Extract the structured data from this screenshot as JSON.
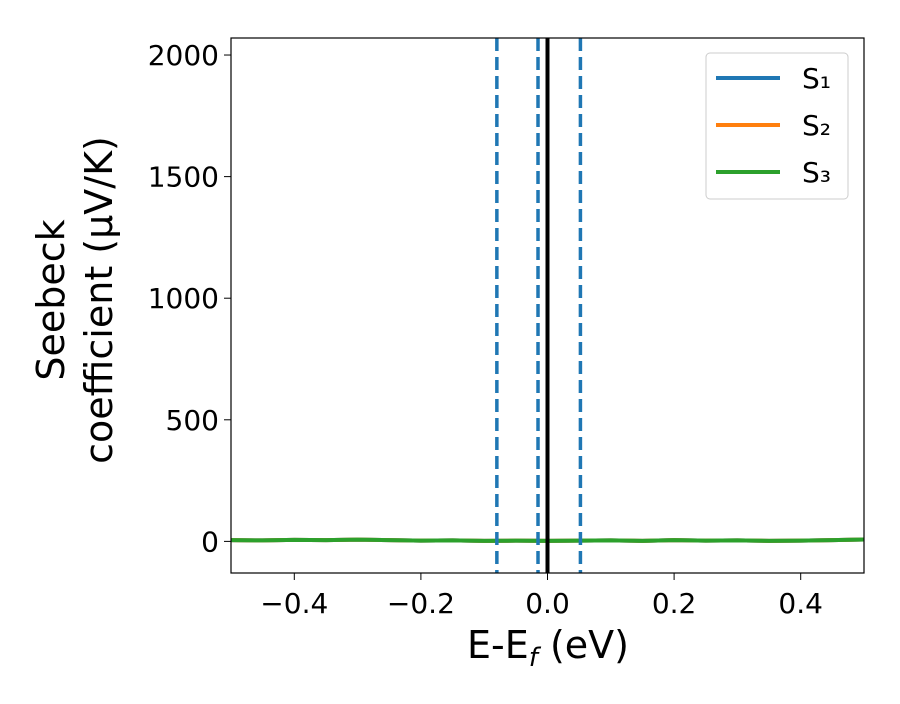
{
  "chart_data": {
    "type": "line",
    "xlabel": [
      "E-E",
      "f",
      " (eV)"
    ],
    "ylabel": [
      "Seebeck",
      "coefficient  (μV/K)"
    ],
    "x": [
      -0.5,
      -0.45,
      -0.4,
      -0.35,
      -0.3,
      -0.25,
      -0.2,
      -0.15,
      -0.1,
      -0.05,
      0,
      0.05,
      0.1,
      0.15,
      0.2,
      0.25,
      0.3,
      0.35,
      0.4,
      0.45,
      0.5
    ],
    "series": [
      {
        "name": "S₁",
        "color": "#1f77b4",
        "values": [
          5,
          4,
          6,
          5,
          7,
          5,
          3,
          4,
          2,
          3,
          2,
          3,
          4,
          2,
          5,
          3,
          4,
          2,
          3,
          5,
          8
        ]
      },
      {
        "name": "S₂",
        "color": "#ff7f0e",
        "values": [
          5,
          4,
          6,
          5,
          7,
          5,
          3,
          4,
          2,
          3,
          2,
          3,
          4,
          2,
          5,
          3,
          4,
          2,
          3,
          5,
          8
        ]
      },
      {
        "name": "S₃",
        "color": "#2ca02c",
        "values": [
          5,
          4,
          6,
          5,
          7,
          5,
          3,
          4,
          2,
          3,
          2,
          3,
          4,
          2,
          5,
          3,
          4,
          2,
          3,
          5,
          8
        ]
      }
    ],
    "vlines": [
      {
        "x": -0.08,
        "color": "#1f77b4",
        "dashed": true
      },
      {
        "x": -0.015,
        "color": "#1f77b4",
        "dashed": true
      },
      {
        "x": 0.052,
        "color": "#1f77b4",
        "dashed": true
      },
      {
        "x": 0,
        "color": "#000000",
        "dashed": false
      }
    ],
    "xlim": [
      -0.5,
      0.5
    ],
    "ylim": [
      -130,
      2070
    ],
    "xticks": [
      {
        "value": -0.4,
        "label": "−0.4"
      },
      {
        "value": -0.2,
        "label": "−0.2"
      },
      {
        "value": 0,
        "label": "0.0"
      },
      0.2,
      0.4
    ],
    "yticks": [
      0,
      500,
      1000,
      1500,
      2000
    ],
    "legend": "upper right"
  }
}
